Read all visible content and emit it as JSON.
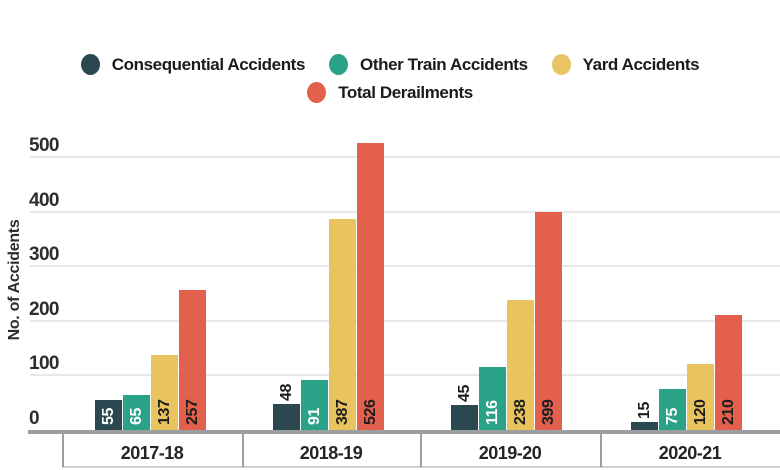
{
  "legend": {
    "items": [
      {
        "label": "Consequential Accidents",
        "color": "#2b4750"
      },
      {
        "label": "Other Train Accidents",
        "color": "#29a287"
      },
      {
        "label": "Yard Accidents",
        "color": "#e9c464"
      },
      {
        "label": "Total Derailments",
        "color": "#e2604c"
      }
    ],
    "rows": [
      [
        0,
        1,
        2
      ],
      [
        3
      ]
    ]
  },
  "y_axis": {
    "title": "No. of Accidents",
    "ticks": [
      500,
      400,
      300,
      200,
      100,
      0
    ]
  },
  "chart_data": {
    "type": "bar",
    "categories": [
      "2017-18",
      "2018-19",
      "2019-20",
      "2020-21"
    ],
    "series": [
      {
        "name": "Consequential Accidents",
        "color": "#2b4750",
        "values": [
          55,
          48,
          45,
          15
        ]
      },
      {
        "name": "Other Train Accidents",
        "color": "#29a287",
        "values": [
          65,
          91,
          116,
          75
        ]
      },
      {
        "name": "Yard Accidents",
        "color": "#e9c35e",
        "values": [
          137,
          387,
          238,
          120
        ]
      },
      {
        "name": "Total Derailments",
        "color": "#e2604c",
        "values": [
          257,
          526,
          399,
          210
        ]
      }
    ],
    "ylabel": "No. of Accidents",
    "ylim": [
      0,
      500
    ],
    "grid": true,
    "legend_position": "top",
    "value_labels": true,
    "value_label_colors": {
      "inside_dark_series": "#ffffff",
      "inside_light_series": "#1d1d1d",
      "outside": "#1d1d1d"
    }
  }
}
